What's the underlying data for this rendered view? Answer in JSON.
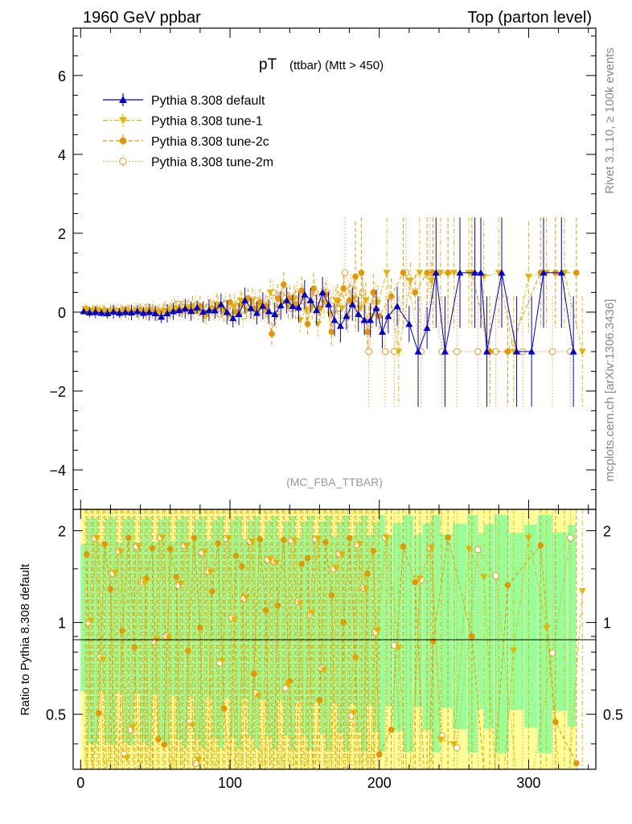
{
  "header": {
    "left": "1960 GeV ppbar",
    "right": "Top (parton level)"
  },
  "side": {
    "rivet": "Rivet 3.1.10, ≥ 100k events",
    "mcplots": "mcplots.cern.ch [arXiv:1306.3436]"
  },
  "chart_data": {
    "type": "scatter",
    "title_main": "pT",
    "title_sub": "(ttbar) (Mtt > 450)",
    "analysis": "(MC_FBA_TTBAR)",
    "ylabel_ratio": "Ratio to Pythia 8.308 default",
    "xlim": [
      -5,
      345
    ],
    "ylim_main": [
      -5,
      7.2
    ],
    "ylim_ratio": [
      0.33,
      2.35
    ],
    "x_ticks": [
      "0",
      "100",
      "200",
      "300"
    ],
    "y_ticks_main": [
      "−4",
      "−2",
      "0",
      "2",
      "4",
      "6"
    ],
    "y_ticks_ratio": [
      "0.5",
      "1",
      "2"
    ],
    "colors": {
      "default": "#0000cc",
      "tune1": "#e6b400",
      "tune2c": "#e69500",
      "tune2m": "#e69a2e",
      "band_green": "#99ff99",
      "band_yellow": "#ffff99"
    },
    "series": [
      {
        "name": "Pythia 8.308 default",
        "key": "default",
        "style": "solid",
        "marker": "triangle-up",
        "points": [
          [
            2,
            0.02
          ],
          [
            6,
            -0.01
          ],
          [
            10,
            0.0
          ],
          [
            14,
            -0.02
          ],
          [
            18,
            -0.03
          ],
          [
            22,
            0.01
          ],
          [
            26,
            -0.02
          ],
          [
            30,
            0.0
          ],
          [
            34,
            -0.01
          ],
          [
            38,
            0.02
          ],
          [
            42,
            -0.02
          ],
          [
            46,
            0.0
          ],
          [
            50,
            -0.03
          ],
          [
            54,
            -0.12
          ],
          [
            58,
            -0.03
          ],
          [
            62,
            0.02
          ],
          [
            66,
            0.05
          ],
          [
            70,
            0.09
          ],
          [
            74,
            0.03
          ],
          [
            78,
            0.12
          ],
          [
            82,
            0.01
          ],
          [
            86,
            0.05
          ],
          [
            90,
            0.04
          ],
          [
            94,
            0.2
          ],
          [
            98,
            0.0
          ],
          [
            102,
            -0.15
          ],
          [
            106,
            -0.05
          ],
          [
            110,
            0.3
          ],
          [
            114,
            0.1
          ],
          [
            118,
            -0.02
          ],
          [
            122,
            0.16
          ],
          [
            126,
            0.02
          ],
          [
            130,
            -0.05
          ],
          [
            134,
            0.17
          ],
          [
            138,
            0.3
          ],
          [
            142,
            0.15
          ],
          [
            146,
            0.12
          ],
          [
            150,
            0.45
          ],
          [
            154,
            0.3
          ],
          [
            158,
            0.05
          ],
          [
            162,
            0.5
          ],
          [
            166,
            0.2
          ],
          [
            170,
            -0.2
          ],
          [
            174,
            -0.35
          ],
          [
            178,
            -0.1
          ],
          [
            182,
            0.2
          ],
          [
            186,
            -0.05
          ],
          [
            190,
            -0.2
          ],
          [
            194,
            -0.2
          ],
          [
            198,
            0.1
          ],
          [
            202,
            -0.5
          ],
          [
            206,
            -0.1
          ],
          [
            212,
            0.15
          ],
          [
            220,
            -0.3
          ],
          [
            226,
            -1.0
          ],
          [
            232,
            -0.4
          ],
          [
            238,
            1.0
          ],
          [
            244,
            -1.0
          ],
          [
            254,
            1.0
          ],
          [
            264,
            1.0
          ],
          [
            268,
            1.0
          ],
          [
            272,
            -1.0
          ],
          [
            282,
            1.0
          ],
          [
            292,
            -1.0
          ],
          [
            302,
            -1.0
          ],
          [
            310,
            1.0
          ],
          [
            322,
            1.0
          ],
          [
            330,
            -1.0
          ]
        ]
      },
      {
        "name": "Pythia 8.308 tune-1",
        "key": "tune1",
        "style": "dashdot",
        "marker": "triangle-down",
        "points": [
          [
            3,
            0.08
          ],
          [
            7,
            0.04
          ],
          [
            11,
            0.06
          ],
          [
            15,
            0.02
          ],
          [
            19,
            0.0
          ],
          [
            23,
            0.03
          ],
          [
            27,
            0.01
          ],
          [
            31,
            0.05
          ],
          [
            35,
            0.0
          ],
          [
            39,
            0.02
          ],
          [
            43,
            0.04
          ],
          [
            47,
            0.03
          ],
          [
            51,
            -0.05
          ],
          [
            55,
            0.0
          ],
          [
            59,
            0.02
          ],
          [
            63,
            0.1
          ],
          [
            67,
            0.06
          ],
          [
            71,
            0.12
          ],
          [
            75,
            0.15
          ],
          [
            79,
            0.05
          ],
          [
            83,
            -0.1
          ],
          [
            87,
            0.08
          ],
          [
            91,
            0.2
          ],
          [
            95,
            0.05
          ],
          [
            99,
            -0.1
          ],
          [
            103,
            0.15
          ],
          [
            107,
            0.3
          ],
          [
            111,
            0.05
          ],
          [
            115,
            0.28
          ],
          [
            119,
            0.1
          ],
          [
            123,
            0.05
          ],
          [
            127,
            0.5
          ],
          [
            131,
            -0.1
          ],
          [
            135,
            0.25
          ],
          [
            139,
            0.15
          ],
          [
            143,
            0.35
          ],
          [
            147,
            -0.2
          ],
          [
            151,
            0.05
          ],
          [
            155,
            0.12
          ],
          [
            159,
            -0.3
          ],
          [
            163,
            0.25
          ],
          [
            167,
            -0.05
          ],
          [
            171,
            0.3
          ],
          [
            175,
            0.1
          ],
          [
            179,
            -0.15
          ],
          [
            183,
            0.35
          ],
          [
            187,
            0.1
          ],
          [
            191,
            0.3
          ],
          [
            195,
            -0.1
          ],
          [
            199,
            0.25
          ],
          [
            205,
            1.0
          ],
          [
            213,
            -1.0
          ],
          [
            221,
            0.8
          ],
          [
            227,
            1.0
          ],
          [
            235,
            0.8
          ],
          [
            241,
            1.0
          ],
          [
            250,
            1.0
          ],
          [
            260,
            1.0
          ],
          [
            270,
            0.9
          ],
          [
            280,
            1.0
          ],
          [
            290,
            -1.0
          ],
          [
            300,
            0.9
          ],
          [
            312,
            1.0
          ],
          [
            324,
            1.0
          ],
          [
            336,
            -1.0
          ]
        ]
      },
      {
        "name": "Pythia 8.308 tune-2c",
        "key": "tune2c",
        "style": "dashed",
        "marker": "circle",
        "points": [
          [
            4,
            0.05
          ],
          [
            8,
            0.03
          ],
          [
            12,
            0.02
          ],
          [
            16,
            0.04
          ],
          [
            20,
            0.01
          ],
          [
            24,
            0.03
          ],
          [
            28,
            0.02
          ],
          [
            32,
            0.0
          ],
          [
            36,
            0.02
          ],
          [
            40,
            0.05
          ],
          [
            44,
            0.01
          ],
          [
            48,
            0.03
          ],
          [
            52,
            0.0
          ],
          [
            56,
            0.04
          ],
          [
            60,
            0.03
          ],
          [
            64,
            0.08
          ],
          [
            68,
            0.05
          ],
          [
            72,
            0.1
          ],
          [
            76,
            0.02
          ],
          [
            80,
            0.15
          ],
          [
            84,
            -0.05
          ],
          [
            88,
            0.1
          ],
          [
            92,
            0.15
          ],
          [
            96,
            0.05
          ],
          [
            100,
            0.25
          ],
          [
            104,
            0.0
          ],
          [
            108,
            0.2
          ],
          [
            112,
            0.35
          ],
          [
            116,
            0.1
          ],
          [
            120,
            0.25
          ],
          [
            124,
            0.15
          ],
          [
            128,
            -0.55
          ],
          [
            132,
            0.35
          ],
          [
            136,
            0.7
          ],
          [
            140,
            0.35
          ],
          [
            144,
            0.2
          ],
          [
            148,
            0.55
          ],
          [
            152,
            -0.3
          ],
          [
            156,
            0.6
          ],
          [
            160,
            0.1
          ],
          [
            164,
            0.45
          ],
          [
            168,
            -0.5
          ],
          [
            172,
            0.3
          ],
          [
            176,
            0.6
          ],
          [
            180,
            0.3
          ],
          [
            184,
            0.9
          ],
          [
            188,
            1.0
          ],
          [
            192,
            -0.5
          ],
          [
            196,
            0.5
          ],
          [
            200,
            -0.1
          ],
          [
            208,
            0.4
          ],
          [
            216,
            1.0
          ],
          [
            224,
            0.5
          ],
          [
            232,
            1.0
          ],
          [
            236,
            1.0
          ],
          [
            246,
            1.0
          ],
          [
            262,
            1.0
          ],
          [
            274,
            -1.0
          ],
          [
            286,
            -1.0
          ],
          [
            308,
            1.0
          ],
          [
            318,
            1.0
          ],
          [
            332,
            1.0
          ]
        ]
      },
      {
        "name": "Pythia 8.308 tune-2m",
        "key": "tune2m",
        "style": "dotted",
        "marker": "circle-open",
        "points": [
          [
            5,
            0.06
          ],
          [
            9,
            0.04
          ],
          [
            13,
            0.03
          ],
          [
            17,
            0.01
          ],
          [
            21,
            0.05
          ],
          [
            25,
            0.02
          ],
          [
            29,
            0.04
          ],
          [
            33,
            0.01
          ],
          [
            37,
            0.03
          ],
          [
            41,
            0.02
          ],
          [
            45,
            0.04
          ],
          [
            49,
            0.05
          ],
          [
            53,
            0.02
          ],
          [
            57,
            0.1
          ],
          [
            61,
            0.06
          ],
          [
            65,
            0.2
          ],
          [
            69,
            0.12
          ],
          [
            73,
            0.03
          ],
          [
            77,
            0.18
          ],
          [
            81,
            0.0
          ],
          [
            85,
            0.12
          ],
          [
            89,
            0.05
          ],
          [
            93,
            -0.05
          ],
          [
            97,
            0.2
          ],
          [
            101,
            0.05
          ],
          [
            105,
            0.1
          ],
          [
            109,
            -0.1
          ],
          [
            113,
            0.12
          ],
          [
            117,
            0.3
          ],
          [
            121,
            0.05
          ],
          [
            125,
            0.05
          ],
          [
            129,
            0.5
          ],
          [
            133,
            0.2
          ],
          [
            137,
            0.35
          ],
          [
            141,
            0.1
          ],
          [
            145,
            0.45
          ],
          [
            149,
            0.3
          ],
          [
            153,
            0.2
          ],
          [
            157,
            0.5
          ],
          [
            161,
            0.2
          ],
          [
            165,
            0.5
          ],
          [
            169,
            0.3
          ],
          [
            173,
            0.1
          ],
          [
            177,
            1.0
          ],
          [
            181,
            0.6
          ],
          [
            185,
            0.2
          ],
          [
            189,
            0.5
          ],
          [
            193,
            -1.0
          ],
          [
            197,
            0.3
          ],
          [
            204,
            -1.0
          ],
          [
            210,
            -1.0
          ],
          [
            218,
            1.0
          ],
          [
            228,
            -1.0
          ],
          [
            234,
            1.0
          ],
          [
            242,
            -1.0
          ],
          [
            252,
            -1.0
          ],
          [
            266,
            -1.0
          ],
          [
            278,
            -1.0
          ],
          [
            296,
            -1.0
          ],
          [
            316,
            -1.0
          ],
          [
            328,
            -1.0
          ]
        ]
      }
    ]
  }
}
